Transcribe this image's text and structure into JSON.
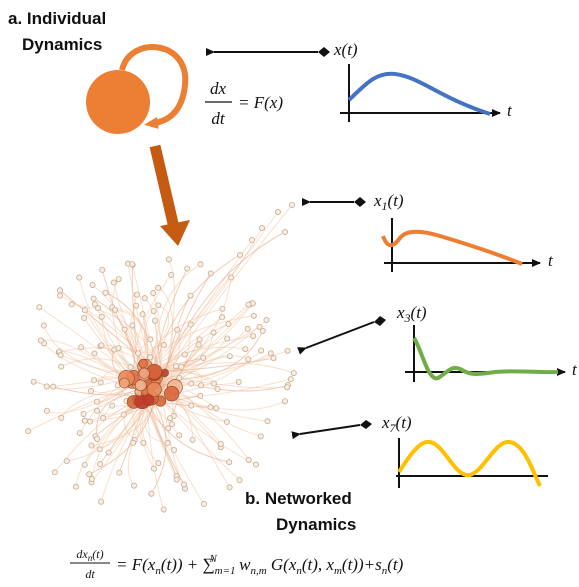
{
  "panel_a": {
    "label": [
      "a. Individual",
      "Dynamics"
    ],
    "equation": {
      "numerator": "dx",
      "denominator": "dt",
      "rhs": "= F(x)"
    },
    "plot": {
      "ylabel": "x(t)",
      "xlabel": "t"
    }
  },
  "panel_b": {
    "label": [
      "b. Networked",
      "Dynamics"
    ],
    "plots": [
      {
        "ylabel": [
          "x",
          "1",
          "(t)"
        ],
        "xlabel": "t"
      },
      {
        "ylabel": [
          "x",
          "3",
          "(t)"
        ],
        "xlabel": "t"
      },
      {
        "ylabel": [
          "x",
          "7",
          "(t)"
        ]
      }
    ]
  },
  "equation": {
    "numerator": [
      "dx",
      "n",
      "(t)"
    ],
    "denominator": "dt",
    "rhs": [
      "= F(x",
      "n",
      "(t)) + ∑",
      "m=1",
      "N",
      " w",
      "n,m",
      " G(x",
      "n",
      "(t), x",
      "m",
      "(t))+s",
      "n",
      "(t)"
    ]
  }
}
